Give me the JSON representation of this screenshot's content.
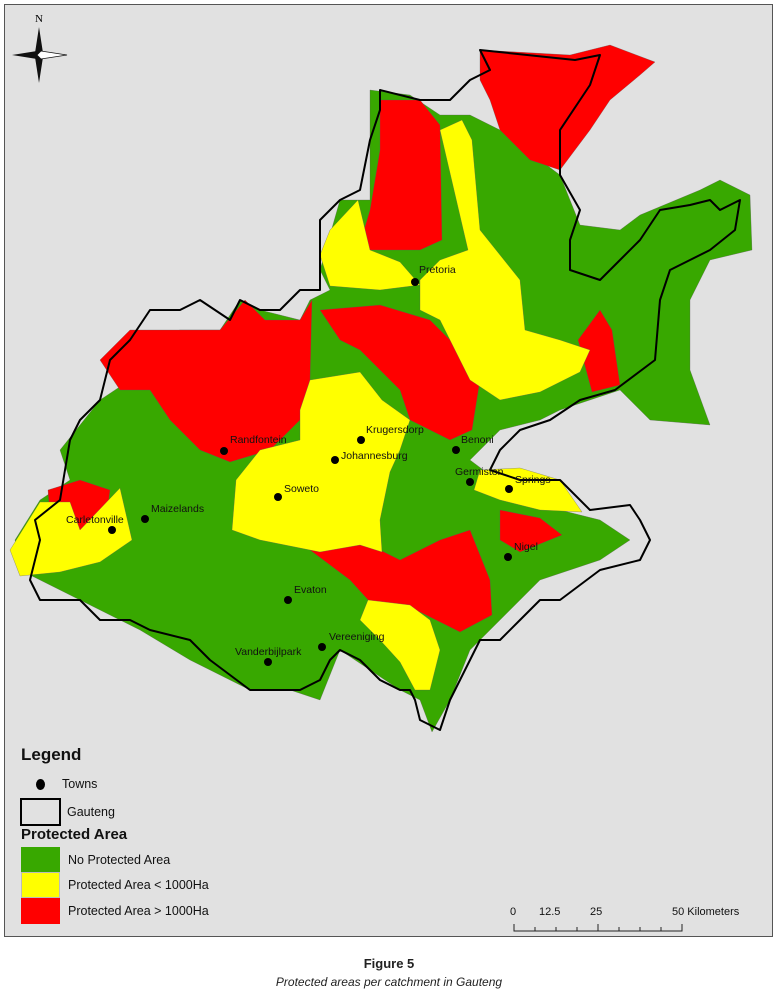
{
  "north_arrow": {
    "label": "N",
    "icon": "compass-rose-icon"
  },
  "colors": {
    "no_protected": "#38a800",
    "protected_small": "#ffff00",
    "protected_large": "#ff0000",
    "background": "#e1e1e1",
    "border": "#000000"
  },
  "towns": [
    {
      "name": "Pretoria"
    },
    {
      "name": "Krugersdorp"
    },
    {
      "name": "Johannesburg"
    },
    {
      "name": "Benoni"
    },
    {
      "name": "Randfontein"
    },
    {
      "name": "Soweto"
    },
    {
      "name": "Germiston"
    },
    {
      "name": "Springs"
    },
    {
      "name": "Maizelands"
    },
    {
      "name": "Carletonville"
    },
    {
      "name": "Nigel"
    },
    {
      "name": "Evaton"
    },
    {
      "name": "Vereeniging"
    },
    {
      "name": "Vanderbijlpark"
    }
  ],
  "legend": {
    "title": "Legend",
    "towns": "Towns",
    "gauteng": "Gauteng",
    "subtitle": "Protected Area",
    "classes": [
      "No Protected Area",
      "Protected Area < 1000Ha",
      "Protected Area > 1000Ha"
    ]
  },
  "scale_bar": {
    "labels": [
      "0",
      "12.5",
      "25",
      "50 Kilometers"
    ]
  },
  "caption": {
    "title": "Figure 5",
    "subtitle": "Protected areas per catchment in Gauteng"
  }
}
